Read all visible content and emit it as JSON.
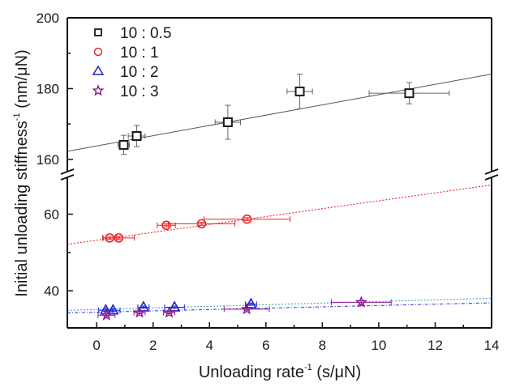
{
  "chart_data": {
    "type": "scatter",
    "title": "",
    "xlabel": "Unloading rate",
    "xlabel_sup": "-1",
    "xlabel_unit": " (s/μN)",
    "ylabel": "Initial unloading stiffness",
    "ylabel_sup": "-1",
    "ylabel_unit": "  (nm/μN)",
    "xlim": [
      -1.04,
      14
    ],
    "x_ticks": [
      0,
      2,
      4,
      6,
      8,
      10,
      12,
      14
    ],
    "x_minor_ticks": [
      1,
      3,
      5,
      7,
      9,
      11,
      13
    ],
    "y_axis_break": true,
    "y_segments": [
      {
        "name": "upper",
        "ylim": [
          157,
          200
        ],
        "ticks": [
          160,
          180,
          200
        ],
        "minor_ticks": [
          170,
          190
        ]
      },
      {
        "name": "lower",
        "ylim": [
          30.3,
          69
        ],
        "ticks": [
          40,
          60
        ],
        "minor_ticks": [
          50
        ]
      }
    ],
    "legend_position": "top-left",
    "series": [
      {
        "name": "10 : 0.5",
        "marker": "square",
        "color": "#1a1a1a",
        "segment": "upper",
        "points": [
          {
            "x": 0.96,
            "y": 164.1,
            "xerr": 0.2,
            "yerr": 2.7
          },
          {
            "x": 1.42,
            "y": 166.6,
            "xerr": 0.3,
            "yerr": 3.0
          },
          {
            "x": 4.65,
            "y": 170.5,
            "xerr": 0.45,
            "yerr": 4.8
          },
          {
            "x": 7.2,
            "y": 179.2,
            "xerr": 0.45,
            "yerr": 4.9
          },
          {
            "x": 11.08,
            "y": 178.7,
            "xerr": 1.42,
            "yerr": 3.0
          }
        ],
        "fit": {
          "slope": 1.45,
          "intercept": 163.8,
          "style": "solid",
          "color": "#555555"
        }
      },
      {
        "name": "10 : 1",
        "marker": "circle",
        "color": "#e8262b",
        "segment": "lower",
        "points": [
          {
            "x": 0.46,
            "y": 53.8,
            "xerr": 0.25,
            "yerr": 0.4
          },
          {
            "x": 0.78,
            "y": 53.8,
            "xerr": 0.55,
            "yerr": 0.4
          },
          {
            "x": 2.47,
            "y": 57.1,
            "xerr": 0.32,
            "yerr": 0.4
          },
          {
            "x": 3.72,
            "y": 57.5,
            "xerr": 1.18,
            "yerr": 0.4
          },
          {
            "x": 5.33,
            "y": 58.7,
            "xerr": 1.53,
            "yerr": 0.4
          }
        ],
        "fit": {
          "slope": 1.03,
          "intercept": 53.2,
          "style": "dotted",
          "color": "#e8262b"
        }
      },
      {
        "name": "10 : 2",
        "marker": "triangle",
        "color": "#1c22d6",
        "segment": "lower",
        "points": [
          {
            "x": 0.32,
            "y": 34.9,
            "xerr": 0.25,
            "yerr": 0.3
          },
          {
            "x": 0.58,
            "y": 34.9,
            "xerr": 0.25,
            "yerr": 0.3
          },
          {
            "x": 1.66,
            "y": 35.7,
            "xerr": 0.2,
            "yerr": 0.3
          },
          {
            "x": 2.76,
            "y": 35.7,
            "xerr": 0.35,
            "yerr": 0.3
          },
          {
            "x": 5.47,
            "y": 36.5,
            "xerr": 0.2,
            "yerr": 0.3
          }
        ],
        "fit": {
          "slope": 0.21,
          "intercept": 35.1,
          "style": "dotted",
          "color": "#3aa5b8"
        }
      },
      {
        "name": "10 : 3",
        "marker": "star",
        "color": "#8a1a8e",
        "segment": "lower",
        "points": [
          {
            "x": 0.35,
            "y": 33.6,
            "xerr": 0.3,
            "yerr": 0.3
          },
          {
            "x": 1.52,
            "y": 34.3,
            "xerr": 0.2,
            "yerr": 0.3
          },
          {
            "x": 2.57,
            "y": 34.3,
            "xerr": 0.2,
            "yerr": 0.3
          },
          {
            "x": 5.32,
            "y": 35.2,
            "xerr": 0.8,
            "yerr": 0.3
          },
          {
            "x": 9.38,
            "y": 37.0,
            "xerr": 1.06,
            "yerr": 0.4
          }
        ],
        "fit": {
          "slope": 0.175,
          "intercept": 34.4,
          "style": "dashdot",
          "color": "#4a3fd0"
        }
      }
    ]
  }
}
